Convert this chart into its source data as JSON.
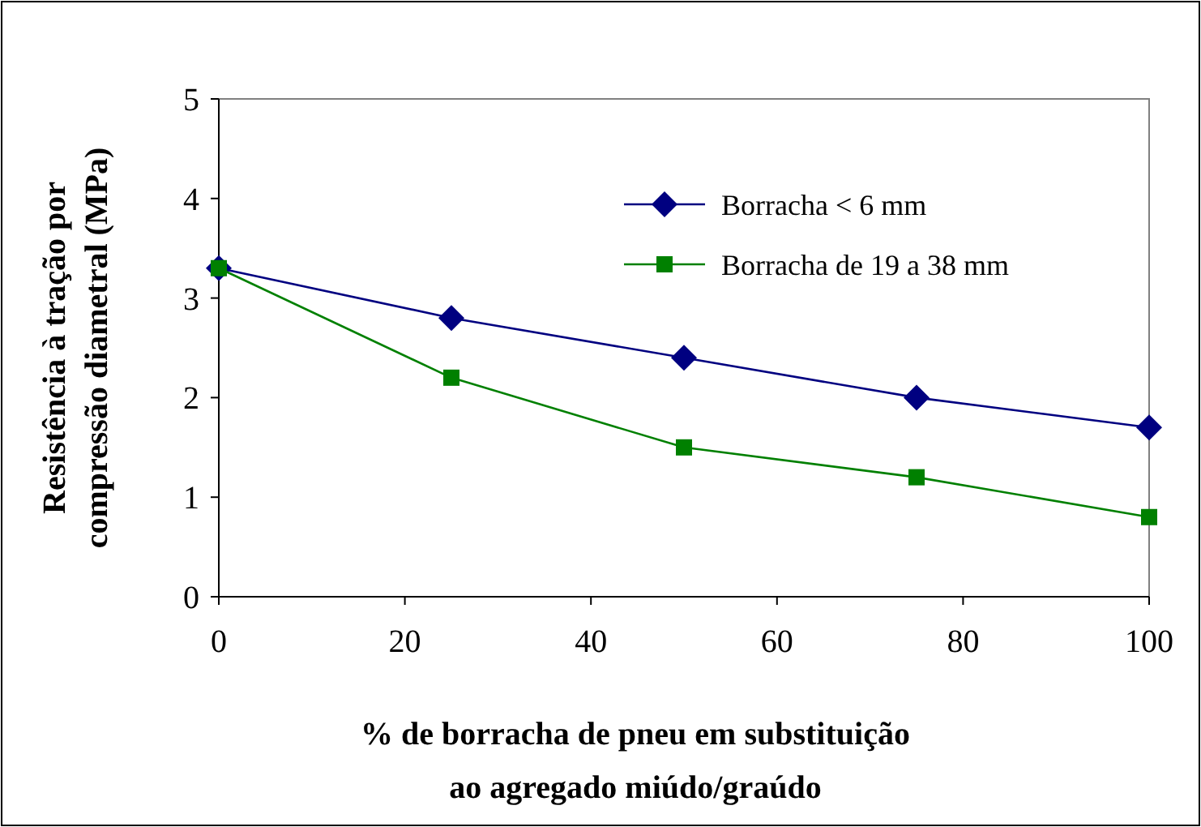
{
  "chart_data": {
    "type": "line",
    "xlabel": "% de borracha de pneu em substituição\nao agregado miúdo/graúdo",
    "ylabel": "Resistência à tração por\ncompressão diametral (MPa)",
    "x": [
      0,
      25,
      50,
      75,
      100
    ],
    "xlim": [
      0,
      100
    ],
    "xticks": [
      0,
      20,
      40,
      60,
      80,
      100
    ],
    "ylim": [
      0,
      5
    ],
    "yticks": [
      0,
      1,
      2,
      3,
      4,
      5
    ],
    "grid": false,
    "legend": "top right",
    "line_style": "solid",
    "series": [
      {
        "name": "Borracha < 6 mm",
        "color": "#000080",
        "marker": "diamond",
        "values": [
          3.3,
          2.8,
          2.4,
          2.0,
          1.7
        ]
      },
      {
        "name": "Borracha de 19 a 38 mm",
        "color": "#008000",
        "marker": "square",
        "values": [
          3.3,
          2.2,
          1.5,
          1.2,
          0.8
        ]
      }
    ]
  }
}
